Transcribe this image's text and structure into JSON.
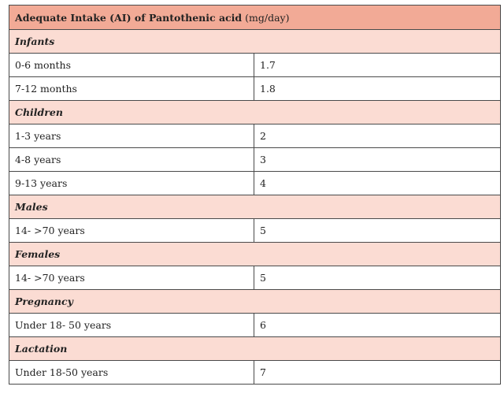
{
  "table": {
    "title_bold": "Adequate Intake (AI) of Pantothenic acid",
    "title_unit": "(mg/day)",
    "sections": [
      {
        "label": "Infants",
        "rows": [
          {
            "age": "0-6 months",
            "value": "1.7"
          },
          {
            "age": "7-12 months",
            "value": "1.8"
          }
        ]
      },
      {
        "label": "Children",
        "rows": [
          {
            "age": "1-3 years",
            "value": "2"
          },
          {
            "age": "4-8 years",
            "value": "3"
          },
          {
            "age": "9-13 years",
            "value": "4"
          }
        ]
      },
      {
        "label": "Males",
        "rows": [
          {
            "age": "14- >70 years",
            "value": "5"
          }
        ]
      },
      {
        "label": "Females",
        "rows": [
          {
            "age": "14- >70 years",
            "value": "5"
          }
        ]
      },
      {
        "label": "Pregnancy",
        "rows": [
          {
            "age": "Under 18- 50 years",
            "value": "6"
          }
        ]
      },
      {
        "label": "Lactation",
        "rows": [
          {
            "age": "Under 18-50 years",
            "value": "7"
          }
        ]
      }
    ],
    "colors": {
      "title_bg": "#f2aa96",
      "section_bg": "#fbdcd3",
      "border": "#4a4a4a"
    }
  }
}
